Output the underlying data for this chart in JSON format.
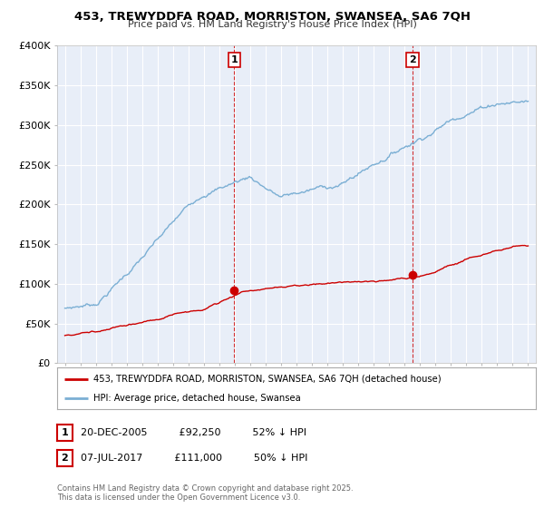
{
  "title_line1": "453, TREWYDDFA ROAD, MORRISTON, SWANSEA, SA6 7QH",
  "title_line2": "Price paid vs. HM Land Registry's House Price Index (HPI)",
  "background_color": "#ffffff",
  "plot_bg_color": "#e8eef8",
  "grid_color": "#ffffff",
  "red_line_color": "#cc0000",
  "blue_line_color": "#7bafd4",
  "marker1_year": 2005.97,
  "marker1_value": 92250,
  "marker2_year": 2017.52,
  "marker2_value": 111000,
  "legend_entries": [
    "453, TREWYDDFA ROAD, MORRISTON, SWANSEA, SA6 7QH (detached house)",
    "HPI: Average price, detached house, Swansea"
  ],
  "table_rows": [
    [
      "1",
      "20-DEC-2005",
      "£92,250",
      "52% ↓ HPI"
    ],
    [
      "2",
      "07-JUL-2017",
      "£111,000",
      "50% ↓ HPI"
    ]
  ],
  "footer": "Contains HM Land Registry data © Crown copyright and database right 2025.\nThis data is licensed under the Open Government Licence v3.0.",
  "ylim": [
    0,
    400000
  ],
  "xlim_start": 1994.5,
  "xlim_end": 2025.5,
  "yticks": [
    0,
    50000,
    100000,
    150000,
    200000,
    250000,
    300000,
    350000,
    400000
  ],
  "ylabels": [
    "£0",
    "£50K",
    "£100K",
    "£150K",
    "£200K",
    "£250K",
    "£300K",
    "£350K",
    "£400K"
  ]
}
